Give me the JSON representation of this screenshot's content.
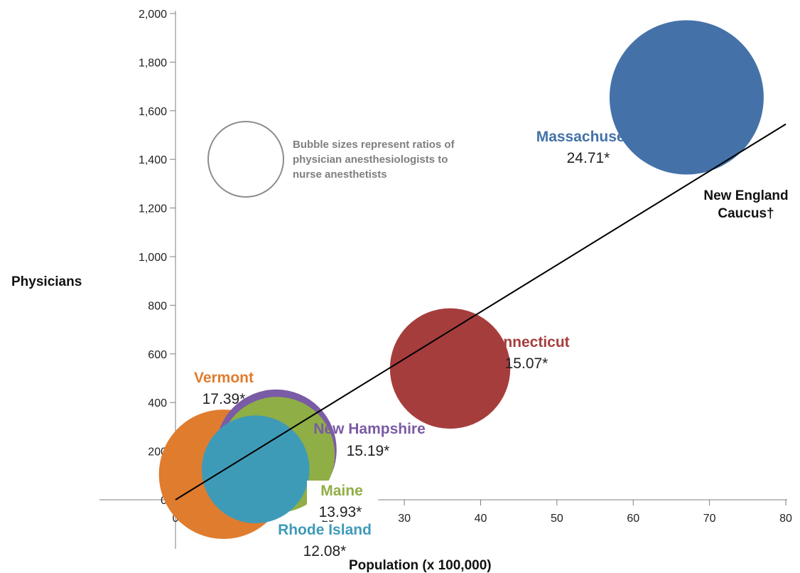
{
  "chart_data": {
    "type": "scatter",
    "title": "",
    "xlabel": "Population (x 100,000)",
    "ylabel": "Physicians",
    "xlim": [
      0,
      80
    ],
    "ylim": [
      0,
      2000
    ],
    "x_ticks": [
      "0",
      "10",
      "20",
      "30",
      "40",
      "50",
      "60",
      "70",
      "80"
    ],
    "y_ticks": [
      "0",
      "200",
      "400",
      "600",
      "800",
      "1,000",
      "1,200",
      "1,400",
      "1,600",
      "1,800",
      "2,000"
    ],
    "bubble_note": [
      "Bubble sizes represent ratios of",
      "physician anesthesiologists to",
      "nurse anesthetists"
    ],
    "series": [
      {
        "name": "Vermont",
        "ratio_label": "17.39*",
        "size": 17.39,
        "x": 6.3,
        "y": 105,
        "color": "#e07c2e"
      },
      {
        "name": "New Hampshire",
        "ratio_label": "15.19*",
        "size": 15.19,
        "x": 13.2,
        "y": 205,
        "color": "#7a5ba5"
      },
      {
        "name": "Maine",
        "ratio_label": "13.93*",
        "size": 13.93,
        "x": 13.3,
        "y": 185,
        "color": "#8fae45"
      },
      {
        "name": "Rhode Island",
        "ratio_label": "12.08*",
        "size": 12.08,
        "x": 10.5,
        "y": 125,
        "color": "#3e9bb8"
      },
      {
        "name": "Connecticut",
        "ratio_label": "15.07*",
        "size": 15.07,
        "x": 36.0,
        "y": 540,
        "color": "#a63d3d"
      },
      {
        "name": "Massachusetts",
        "ratio_label": "24.71*",
        "size": 24.71,
        "x": 67.0,
        "y": 1655,
        "color": "#4472a8"
      }
    ],
    "trendline": {
      "label_lines": [
        "New England",
        "Caucus†"
      ],
      "x": [
        0,
        80
      ],
      "y": [
        0,
        1545
      ]
    }
  }
}
